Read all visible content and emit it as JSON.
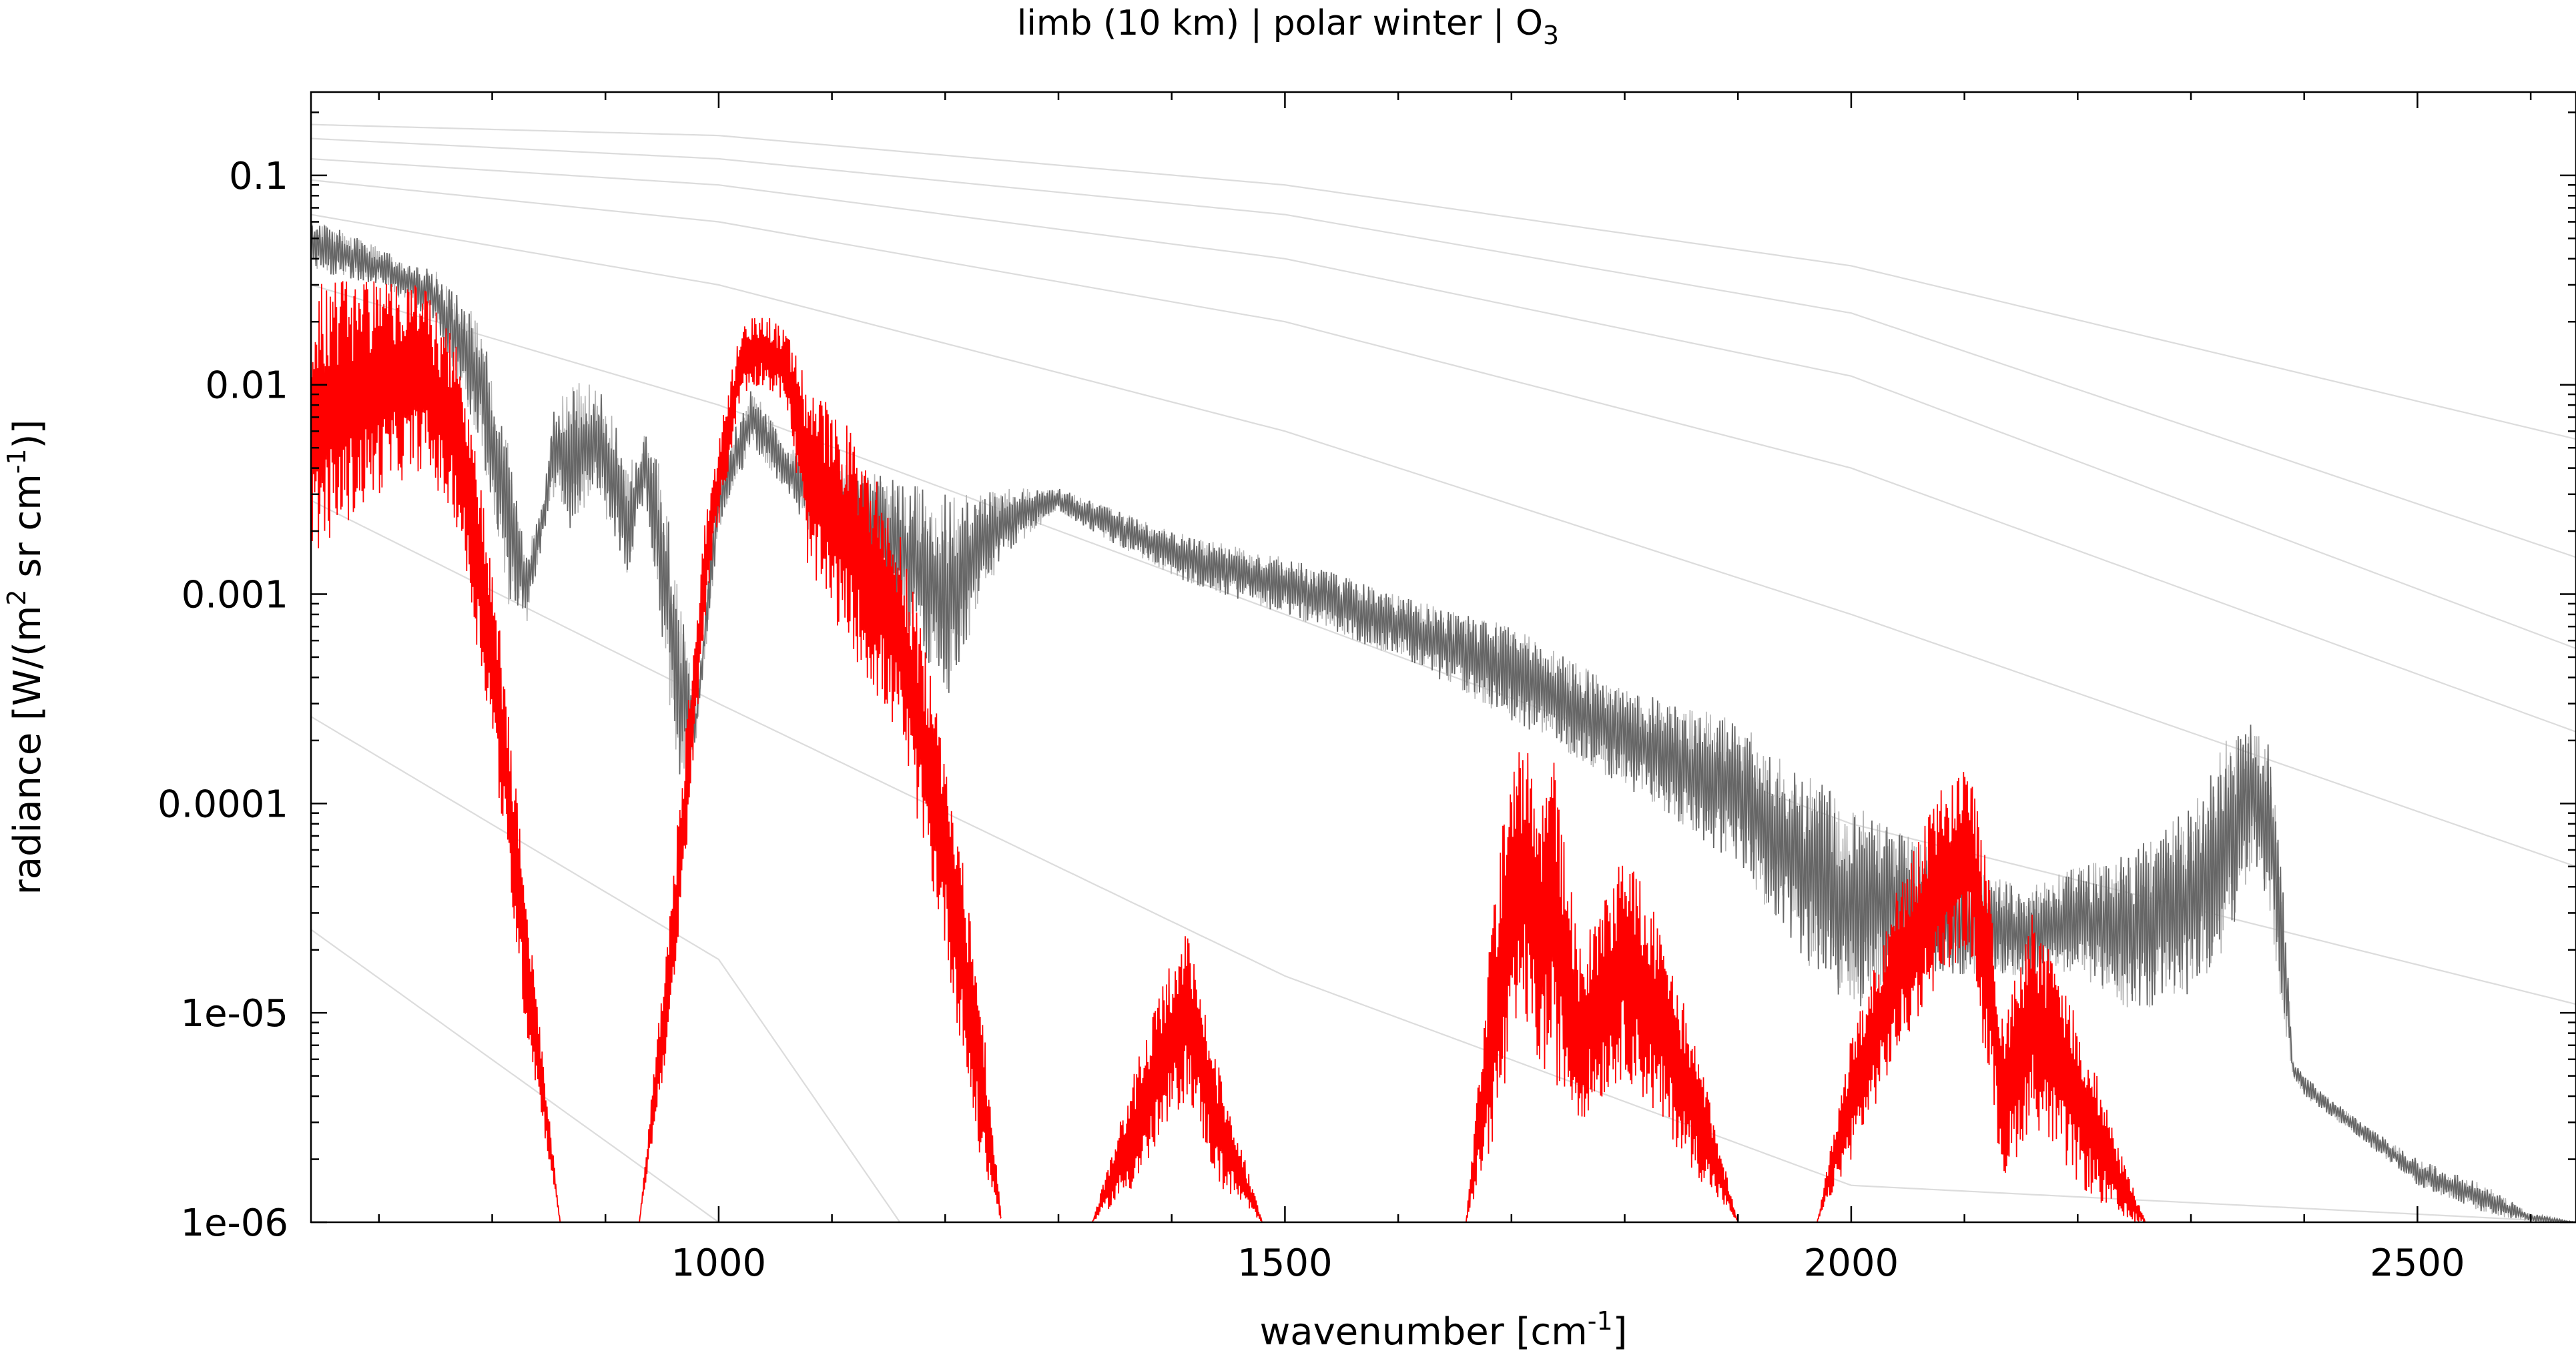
{
  "chart_data": {
    "type": "line",
    "title": "limb (10 km) | polar winter | O",
    "title_subscript": "3",
    "xlabel": "wavenumber [cm",
    "xlabel_sup": "-1",
    "xlabel_end": "]",
    "ylabel": "radiance [W/(m",
    "ylabel_sup1": "2",
    "ylabel_mid": " sr cm",
    "ylabel_sup2": "-1",
    "ylabel_end": ")]",
    "x_scale": "linear",
    "y_scale": "log",
    "xlim": [
      640,
      2640
    ],
    "ylim": [
      1e-06,
      0.25
    ],
    "x_ticks": [
      1000,
      1500,
      2000,
      2500
    ],
    "x_tick_labels": [
      "1000",
      "1500",
      "2000",
      "2500"
    ],
    "y_ticks": [
      0.1,
      0.01,
      0.001,
      0.0001,
      1e-05,
      1e-06
    ],
    "y_tick_labels": [
      "0.1",
      "0.01",
      "0.001",
      "0.0001",
      "1e-05",
      "1e-06"
    ],
    "colors": {
      "target_gas": "#ff0000",
      "total": "#666666",
      "total_light": "#b4b4b4",
      "reference": "#dcdcdc"
    },
    "reference_curves": [
      {
        "values": [
          [
            640,
            0.175
          ],
          [
            1000,
            0.155
          ],
          [
            1500,
            0.09
          ],
          [
            2000,
            0.037
          ],
          [
            2640,
            0.0055
          ]
        ]
      },
      {
        "values": [
          [
            640,
            0.15
          ],
          [
            1000,
            0.12
          ],
          [
            1500,
            0.065
          ],
          [
            2000,
            0.022
          ],
          [
            2640,
            0.0015
          ]
        ]
      },
      {
        "values": [
          [
            640,
            0.12
          ],
          [
            1000,
            0.09
          ],
          [
            1500,
            0.04
          ],
          [
            2000,
            0.011
          ],
          [
            2640,
            0.00055
          ]
        ]
      },
      {
        "values": [
          [
            640,
            0.095
          ],
          [
            1000,
            0.06
          ],
          [
            1500,
            0.02
          ],
          [
            2000,
            0.004
          ],
          [
            2640,
            0.00022
          ]
        ]
      },
      {
        "values": [
          [
            640,
            0.065
          ],
          [
            1000,
            0.03
          ],
          [
            1500,
            0.006
          ],
          [
            2000,
            0.0008
          ],
          [
            2640,
            5e-05
          ]
        ]
      },
      {
        "values": [
          [
            640,
            0.03
          ],
          [
            1000,
            0.008
          ],
          [
            1500,
            0.0008
          ],
          [
            2000,
            8e-05
          ],
          [
            2640,
            1.1e-05
          ]
        ]
      },
      {
        "values": [
          [
            640,
            0.0028
          ],
          [
            1000,
            0.0003
          ],
          [
            1500,
            1.5e-05
          ],
          [
            2000,
            1.5e-06
          ],
          [
            2640,
            1e-06
          ]
        ]
      },
      {
        "values": [
          [
            640,
            0.00026
          ],
          [
            1000,
            1.8e-05
          ],
          [
            1160,
            1e-06
          ]
        ]
      },
      {
        "values": [
          [
            640,
            2.5e-05
          ],
          [
            1000,
            1e-06
          ]
        ]
      }
    ],
    "series": [
      {
        "color": "#666666",
        "envelope_top": [
          [
            640,
            0.065
          ],
          [
            700,
            0.045
          ],
          [
            750,
            0.035
          ],
          [
            790,
            0.02
          ],
          [
            815,
            0.005
          ],
          [
            830,
            0.0015
          ],
          [
            845,
            0.003
          ],
          [
            855,
            0.008
          ],
          [
            870,
            0.011
          ],
          [
            890,
            0.01
          ],
          [
            905,
            0.008
          ],
          [
            920,
            0.004
          ],
          [
            935,
            0.006
          ],
          [
            950,
            0.004
          ],
          [
            965,
            0.001
          ],
          [
            980,
            0.0003
          ],
          [
            1000,
            0.004
          ],
          [
            1030,
            0.01
          ],
          [
            1060,
            0.005
          ],
          [
            1080,
            0.005
          ],
          [
            1120,
            0.004
          ],
          [
            1160,
            0.0035
          ],
          [
            1200,
            0.003
          ],
          [
            1250,
            0.0032
          ],
          [
            1300,
            0.0032
          ],
          [
            1400,
            0.002
          ],
          [
            1500,
            0.0015
          ],
          [
            1600,
            0.001
          ],
          [
            1700,
            0.0007
          ],
          [
            1800,
            0.00035
          ],
          [
            1900,
            0.00025
          ],
          [
            1950,
            0.00015
          ],
          [
            2000,
            0.0001
          ],
          [
            2050,
            7e-05
          ],
          [
            2100,
            5e-05
          ],
          [
            2150,
            4e-05
          ],
          [
            2200,
            5e-05
          ],
          [
            2250,
            6e-05
          ],
          [
            2300,
            0.0001
          ],
          [
            2330,
            0.0002
          ],
          [
            2355,
            0.00025
          ],
          [
            2370,
            0.0002
          ],
          [
            2380,
            5e-05
          ],
          [
            2390,
            6e-06
          ],
          [
            2400,
            5e-06
          ],
          [
            2450,
            3e-06
          ],
          [
            2500,
            2e-06
          ],
          [
            2560,
            1.5e-06
          ],
          [
            2600,
            1.1e-06
          ],
          [
            2640,
            1e-06
          ]
        ],
        "envelope_bottom": [
          [
            640,
            0.035
          ],
          [
            700,
            0.03
          ],
          [
            750,
            0.02
          ],
          [
            790,
            0.005
          ],
          [
            815,
            0.0008
          ],
          [
            830,
            0.0007
          ],
          [
            845,
            0.0018
          ],
          [
            855,
            0.003
          ],
          [
            870,
            0.002
          ],
          [
            890,
            0.003
          ],
          [
            905,
            0.002
          ],
          [
            920,
            0.0012
          ],
          [
            935,
            0.003
          ],
          [
            950,
            0.0006
          ],
          [
            965,
            0.00012
          ],
          [
            980,
            0.0002
          ],
          [
            1000,
            0.002
          ],
          [
            1030,
            0.005
          ],
          [
            1060,
            0.003
          ],
          [
            1080,
            0.002
          ],
          [
            1120,
            0.0015
          ],
          [
            1160,
            0.0008
          ],
          [
            1200,
            0.0003
          ],
          [
            1250,
            0.0015
          ],
          [
            1300,
            0.0025
          ],
          [
            1400,
            0.0012
          ],
          [
            1500,
            0.0008
          ],
          [
            1600,
            0.0005
          ],
          [
            1700,
            0.00025
          ],
          [
            1800,
            0.00012
          ],
          [
            1900,
            5e-05
          ],
          [
            1950,
            2e-05
          ],
          [
            2000,
            1e-05
          ],
          [
            2050,
            1.5e-05
          ],
          [
            2100,
            1.5e-05
          ],
          [
            2150,
            1.5e-05
          ],
          [
            2200,
            1.5e-05
          ],
          [
            2250,
            1e-05
          ],
          [
            2300,
            1.2e-05
          ],
          [
            2330,
            2e-05
          ],
          [
            2355,
            5e-05
          ],
          [
            2370,
            3e-05
          ],
          [
            2380,
            1e-05
          ],
          [
            2390,
            5e-06
          ],
          [
            2400,
            4e-06
          ],
          [
            2450,
            2.5e-06
          ],
          [
            2500,
            1.5e-06
          ],
          [
            2560,
            1.1e-06
          ],
          [
            2600,
            1e-06
          ],
          [
            2640,
            1e-06
          ]
        ]
      },
      {
        "color": "#ff0000",
        "bands": [
          {
            "envelope_top": [
              [
                640,
                0.03
              ],
              [
                700,
                0.035
              ],
              [
                740,
                0.03
              ],
              [
                770,
                0.015
              ],
              [
                800,
                0.0015
              ],
              [
                830,
                4e-05
              ],
              [
                860,
                1e-06
              ]
            ],
            "envelope_bottom": [
              [
                640,
                0.0015
              ],
              [
                700,
                0.003
              ],
              [
                740,
                0.004
              ],
              [
                770,
                0.002
              ],
              [
                800,
                0.0002
              ],
              [
                830,
                8e-06
              ],
              [
                860,
                1e-06
              ]
            ]
          },
          {
            "envelope_top": [
              [
                930,
                1e-06
              ],
              [
                960,
                5e-05
              ],
              [
                990,
                0.003
              ],
              [
                1020,
                0.02
              ],
              [
                1040,
                0.022
              ],
              [
                1060,
                0.018
              ],
              [
                1080,
                0.01
              ],
              [
                1120,
                0.006
              ],
              [
                1160,
                0.002
              ],
              [
                1200,
                0.0002
              ],
              [
                1230,
                1.5e-05
              ],
              [
                1250,
                1e-06
              ]
            ],
            "envelope_bottom": [
              [
                930,
                1e-06
              ],
              [
                960,
                1e-05
              ],
              [
                990,
                0.001
              ],
              [
                1020,
                0.009
              ],
              [
                1040,
                0.01
              ],
              [
                1060,
                0.008
              ],
              [
                1080,
                0.0012
              ],
              [
                1120,
                0.0005
              ],
              [
                1160,
                0.0002
              ],
              [
                1200,
                2e-05
              ],
              [
                1230,
                2e-06
              ],
              [
                1250,
                1e-06
              ]
            ]
          },
          {
            "envelope_top": [
              [
                1330,
                1e-06
              ],
              [
                1370,
                6e-06
              ],
              [
                1400,
                1.8e-05
              ],
              [
                1415,
                2.5e-05
              ],
              [
                1440,
                6e-06
              ],
              [
                1480,
                1e-06
              ]
            ],
            "envelope_bottom": [
              [
                1330,
                1e-06
              ],
              [
                1370,
                1.5e-06
              ],
              [
                1400,
                3e-06
              ],
              [
                1415,
                4e-06
              ],
              [
                1440,
                1.5e-06
              ],
              [
                1480,
                1e-06
              ]
            ]
          },
          {
            "envelope_top": [
              [
                1660,
                1e-06
              ],
              [
                1690,
                8e-05
              ],
              [
                1710,
                0.00022
              ],
              [
                1725,
                0.0001
              ],
              [
                1735,
                0.00022
              ],
              [
                1760,
                2e-05
              ],
              [
                1800,
                6e-05
              ],
              [
                1830,
                3e-05
              ],
              [
                1870,
                5e-06
              ],
              [
                1900,
                1e-06
              ]
            ],
            "envelope_bottom": [
              [
                1660,
                1e-06
              ],
              [
                1690,
                3e-06
              ],
              [
                1710,
                1e-05
              ],
              [
                1725,
                5e-06
              ],
              [
                1735,
                5e-06
              ],
              [
                1760,
                3e-06
              ],
              [
                1800,
                5e-06
              ],
              [
                1830,
                3e-06
              ],
              [
                1870,
                1.5e-06
              ],
              [
                1900,
                1e-06
              ]
            ]
          },
          {
            "envelope_top": [
              [
                1970,
                1e-06
              ],
              [
                2000,
                8e-06
              ],
              [
                2040,
                4e-05
              ],
              [
                2080,
                0.00012
              ],
              [
                2105,
                0.00015
              ],
              [
                2120,
                5e-05
              ],
              [
                2135,
                1e-05
              ],
              [
                2160,
                3e-05
              ],
              [
                2200,
                1e-05
              ],
              [
                2240,
                2e-06
              ],
              [
                2260,
                1e-06
              ]
            ],
            "envelope_bottom": [
              [
                1970,
                1e-06
              ],
              [
                2000,
                2e-06
              ],
              [
                2040,
                6e-06
              ],
              [
                2080,
                1.5e-05
              ],
              [
                2105,
                2e-05
              ],
              [
                2120,
                5e-06
              ],
              [
                2135,
                1.5e-06
              ],
              [
                2160,
                3e-06
              ],
              [
                2200,
                1.5e-06
              ],
              [
                2240,
                1e-06
              ],
              [
                2260,
                1e-06
              ]
            ]
          }
        ]
      }
    ],
    "grid": false
  }
}
